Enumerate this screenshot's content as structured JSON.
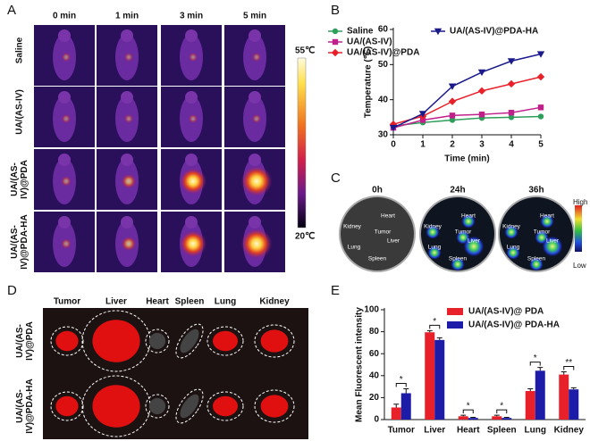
{
  "panel_labels": [
    "A",
    "B",
    "C",
    "D",
    "E"
  ],
  "thermal": {
    "columns": [
      "0 min",
      "1 min",
      "3 min",
      "5 min"
    ],
    "rows": [
      "Saline",
      "UA/(AS-IV)",
      "UA/(AS-IV)@PDA",
      "UA/(AS-IV)@PDA-HA"
    ],
    "scale_max": "55℃",
    "scale_min": "20℃"
  },
  "fluorescence": {
    "times": [
      "0h",
      "24h",
      "36h"
    ],
    "organs": [
      "Heart",
      "Kidney",
      "Tumor",
      "Liver",
      "Lung",
      "Spleen"
    ],
    "scale_high": "High",
    "scale_low": "Low"
  },
  "ex_vivo": {
    "organs": [
      "Tumor",
      "Liver",
      "Heart",
      "Spleen",
      "Lung",
      "Kidney"
    ],
    "rows": [
      "UA/(AS-IV)@PDA",
      "UA/(AS-IV)@PDA-HA"
    ]
  },
  "chart_data": [
    {
      "type": "line",
      "x_label": "Time (min)",
      "y_label": "Temperature (℃)",
      "x": [
        0,
        1,
        2,
        3,
        4,
        5
      ],
      "xlim": [
        0,
        5
      ],
      "xticks": [
        0,
        1,
        2,
        3,
        4,
        5
      ],
      "ylim": [
        30,
        60
      ],
      "yticks": [
        30,
        40,
        50,
        60
      ],
      "series": [
        {
          "name": "Saline",
          "color": "#2e9e5b",
          "marker": "circle",
          "values": [
            32.5,
            33.5,
            34.2,
            34.8,
            35.0,
            35.2
          ]
        },
        {
          "name": "UA/(AS-IV)",
          "color": "#c0208a",
          "marker": "square",
          "values": [
            32.0,
            34.2,
            35.5,
            35.8,
            36.3,
            37.8
          ]
        },
        {
          "name": "UA/(AS-IV)@PDA",
          "color": "#e8202a",
          "marker": "diamond",
          "values": [
            33.0,
            35.3,
            39.5,
            42.5,
            44.5,
            46.5
          ]
        },
        {
          "name": "UA/(AS-IV)@PDA-HA",
          "color": "#1a1a8c",
          "marker": "triangle-down",
          "values": [
            32.0,
            36.0,
            43.8,
            47.8,
            51.0,
            53.0
          ]
        }
      ]
    },
    {
      "type": "bar",
      "y_label": "Mean Fluorescent intensity",
      "categories": [
        "Tumor",
        "Liver",
        "Heart",
        "Spleen",
        "Lung",
        "Kidney"
      ],
      "ylim": [
        0,
        100
      ],
      "yticks": [
        0,
        20,
        40,
        60,
        80,
        100
      ],
      "series": [
        {
          "name": "UA/(AS-IV)@ PDA",
          "color": "#e8202a",
          "values": [
            11,
            79.5,
            3,
            3,
            26,
            41
          ],
          "errors": [
            3,
            1.5,
            1,
            1,
            2,
            2.5
          ]
        },
        {
          "name": "UA/(AS-IV)@ PDA-HA",
          "color": "#1c1ca8",
          "values": [
            24,
            72.5,
            1.5,
            1.5,
            44.5,
            27.5
          ],
          "errors": [
            4,
            2,
            0.5,
            0.5,
            3,
            1.5
          ]
        }
      ],
      "significance": [
        "*",
        "*",
        "*",
        "*",
        "*",
        "**"
      ]
    }
  ]
}
